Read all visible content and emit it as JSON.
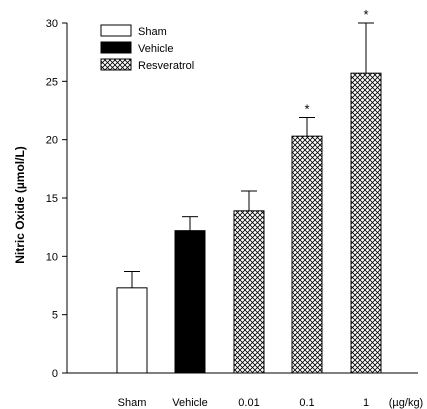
{
  "chart_data": {
    "type": "bar",
    "ylabel": "Nitric Oxide (µmol/L)",
    "xunit": "(µg/kg)",
    "ylim": [
      0,
      30
    ],
    "yticks": [
      0,
      5,
      10,
      15,
      20,
      25,
      30
    ],
    "grid": false,
    "legend_position": "top-left",
    "categories": [
      "Sham",
      "Vehicle",
      "0.01",
      "0.1",
      "1"
    ],
    "values": [
      7.3,
      12.2,
      13.9,
      20.3,
      25.7
    ],
    "errors": [
      1.4,
      1.2,
      1.7,
      1.6,
      4.3
    ],
    "groups": [
      "Sham",
      "Vehicle",
      "Resveratrol",
      "Resveratrol",
      "Resveratrol"
    ],
    "significance": [
      "",
      "",
      "",
      "*",
      "*"
    ],
    "legend": [
      {
        "label": "Sham",
        "fill": "white"
      },
      {
        "label": "Vehicle",
        "fill": "black"
      },
      {
        "label": "Resveratrol",
        "fill": "crosshatch"
      }
    ],
    "colors": {
      "axis": "#000000",
      "vehicle": "#000000",
      "sham": "#ffffff"
    }
  }
}
